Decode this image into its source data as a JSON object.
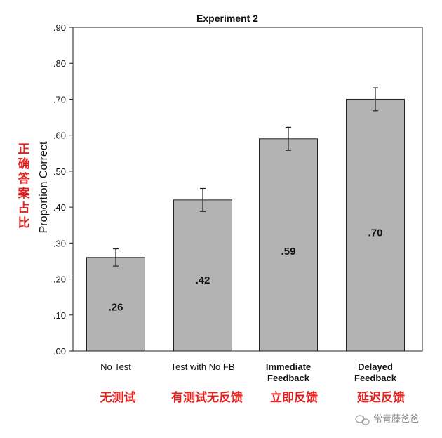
{
  "chart_data": {
    "type": "bar",
    "title": "Experiment 2",
    "ylabel": "Proportion Correct",
    "ylabel_cn": "正确答案占比",
    "ylim": [
      0,
      0.9
    ],
    "yticks": [
      ".00",
      ".10",
      ".20",
      ".30",
      ".40",
      ".50",
      ".60",
      ".70",
      ".80",
      ".90"
    ],
    "categories": [
      [
        "No Test"
      ],
      [
        "Test with No FB"
      ],
      [
        "Immediate",
        "Feedback"
      ],
      [
        "Delayed",
        "Feedback"
      ]
    ],
    "categories_bold": [
      false,
      false,
      true,
      true
    ],
    "categories_cn": [
      "无测试",
      "有测试无反馈",
      "立即反馈",
      "延迟反馈"
    ],
    "values": [
      0.26,
      0.42,
      0.59,
      0.7
    ],
    "data_labels": [
      ".26",
      ".42",
      ".59",
      ".70"
    ],
    "error_bars": [
      0.024,
      0.032,
      0.032,
      0.032
    ],
    "bar_color": "#b3b3b3",
    "label_color": "#e0221f",
    "grid": false
  },
  "watermark": {
    "text": "常青藤爸爸",
    "icon": "wechat-icon"
  }
}
